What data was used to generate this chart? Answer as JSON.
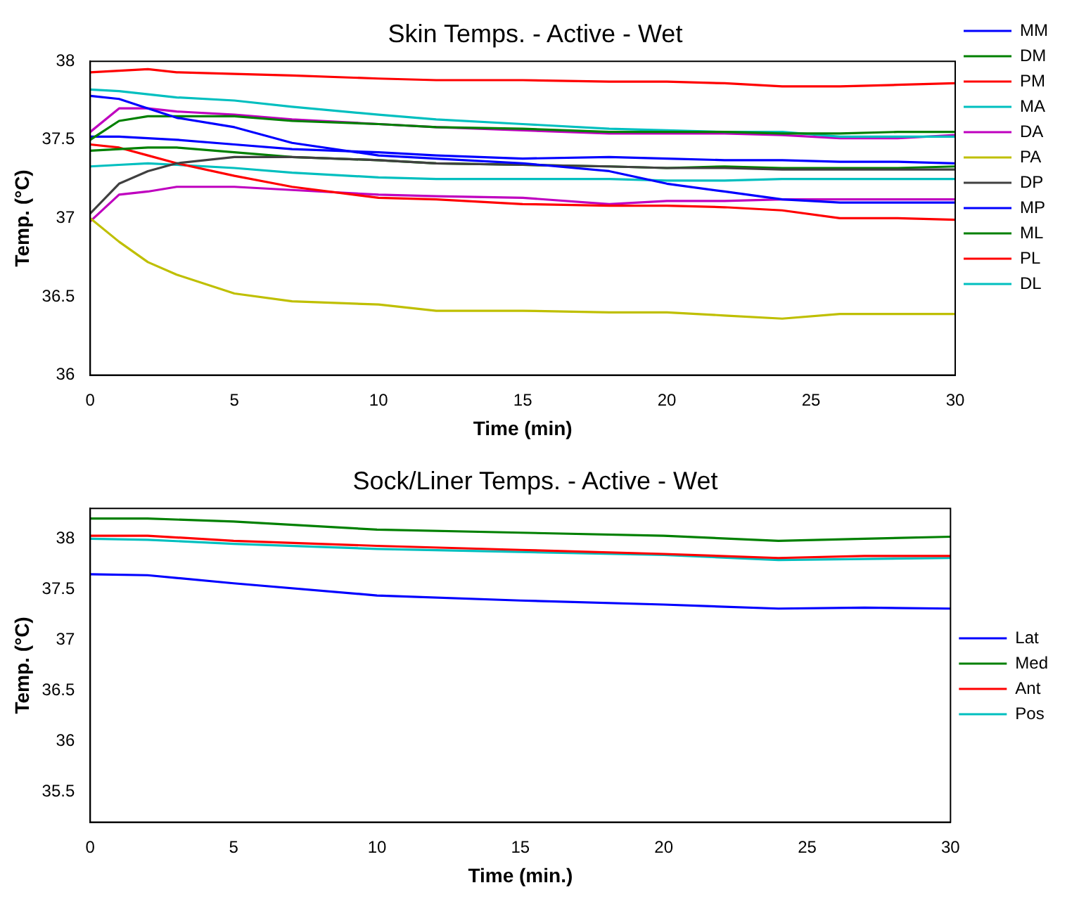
{
  "chart_data": [
    {
      "type": "line",
      "title": "Skin Temps. - Active - Wet",
      "xlabel": "Time (min)",
      "ylabel": "Temp. (°C)",
      "x": [
        0,
        1,
        2,
        3,
        5,
        7,
        10,
        12,
        15,
        18,
        20,
        22,
        24,
        26,
        28,
        30
      ],
      "series": [
        {
          "name": "MM",
          "color": "#0000ff",
          "values": [
            37.78,
            37.76,
            37.7,
            37.64,
            37.58,
            37.48,
            37.4,
            37.38,
            37.35,
            37.3,
            37.22,
            37.17,
            37.12,
            37.1,
            37.1,
            37.1
          ]
        },
        {
          "name": "DM",
          "color": "#008000",
          "values": [
            37.5,
            37.62,
            37.65,
            37.65,
            37.65,
            37.62,
            37.6,
            37.58,
            37.57,
            37.55,
            37.55,
            37.55,
            37.54,
            37.54,
            37.55,
            37.55
          ]
        },
        {
          "name": "PM",
          "color": "#ff0000",
          "values": [
            37.93,
            37.94,
            37.95,
            37.93,
            37.92,
            37.91,
            37.89,
            37.88,
            37.88,
            37.87,
            37.87,
            37.86,
            37.84,
            37.84,
            37.85,
            37.86
          ]
        },
        {
          "name": "MA",
          "color": "#00bfbf",
          "values": [
            37.82,
            37.81,
            37.79,
            37.77,
            37.75,
            37.71,
            37.66,
            37.63,
            37.6,
            37.57,
            37.56,
            37.55,
            37.55,
            37.52,
            37.52,
            37.52
          ]
        },
        {
          "name": "DA",
          "color": "#bf00bf",
          "values": [
            37.55,
            37.7,
            37.7,
            37.68,
            37.66,
            37.63,
            37.6,
            37.58,
            37.56,
            37.54,
            37.54,
            37.54,
            37.53,
            37.51,
            37.51,
            37.53
          ]
        },
        {
          "name": "PA",
          "color": "#bfbf00",
          "values": [
            37.0,
            36.85,
            36.72,
            36.64,
            36.52,
            36.47,
            36.45,
            36.41,
            36.41,
            36.4,
            36.4,
            36.38,
            36.36,
            36.39,
            36.39,
            36.39
          ]
        },
        {
          "name": "DP",
          "color": "#404040",
          "values": [
            37.03,
            37.22,
            37.3,
            37.35,
            37.39,
            37.39,
            37.37,
            37.35,
            37.34,
            37.33,
            37.32,
            37.32,
            37.31,
            37.31,
            37.31,
            37.31
          ]
        },
        {
          "name": "MP",
          "color": "#0000ff",
          "values": [
            37.52,
            37.52,
            37.51,
            37.5,
            37.47,
            37.44,
            37.42,
            37.4,
            37.38,
            37.39,
            37.38,
            37.37,
            37.37,
            37.36,
            37.36,
            37.35
          ]
        },
        {
          "name": "ML",
          "color": "#008000",
          "values": [
            37.43,
            37.44,
            37.45,
            37.45,
            37.42,
            37.39,
            37.37,
            37.35,
            37.34,
            37.33,
            37.32,
            37.33,
            37.32,
            37.32,
            37.32,
            37.33
          ]
        },
        {
          "name": "PL",
          "color": "#ff0000",
          "values": [
            37.47,
            37.45,
            37.4,
            37.35,
            37.27,
            37.2,
            37.13,
            37.12,
            37.09,
            37.08,
            37.08,
            37.07,
            37.05,
            37.0,
            37.0,
            36.99
          ]
        },
        {
          "name": "DL",
          "color": "#00bfbf",
          "values": [
            37.33,
            37.34,
            37.35,
            37.34,
            37.32,
            37.29,
            37.26,
            37.25,
            37.25,
            37.25,
            37.24,
            37.24,
            37.25,
            37.25,
            37.25,
            37.25
          ]
        },
        {
          "color": "#bf00bf",
          "values": [
            36.98,
            37.15,
            37.17,
            37.2,
            37.2,
            37.18,
            37.15,
            37.14,
            37.13,
            37.09,
            37.11,
            37.11,
            37.12,
            37.12,
            37.12,
            37.12
          ]
        }
      ],
      "xlim": [
        0,
        30
      ],
      "xticks": [
        0,
        5,
        10,
        15,
        20,
        25,
        30
      ],
      "ylim": [
        36,
        38
      ],
      "yticks": [
        36,
        36.5,
        37,
        37.5,
        38
      ],
      "grid": false,
      "legend": "top right"
    },
    {
      "type": "line",
      "title": "Sock/Liner Temps. - Active - Wet",
      "xlabel": "Time (min.)",
      "ylabel": "Temp. (°C)",
      "x": [
        0,
        2,
        5,
        10,
        15,
        20,
        24,
        27,
        30
      ],
      "series": [
        {
          "name": "Lat",
          "color": "#0000ff",
          "values": [
            37.65,
            37.64,
            37.56,
            37.44,
            37.39,
            37.35,
            37.31,
            37.32,
            37.31
          ]
        },
        {
          "name": "Med",
          "color": "#008000",
          "values": [
            38.2,
            38.2,
            38.17,
            38.09,
            38.06,
            38.03,
            37.98,
            38.0,
            38.02
          ]
        },
        {
          "name": "Ant",
          "color": "#ff0000",
          "values": [
            38.03,
            38.03,
            37.98,
            37.93,
            37.89,
            37.85,
            37.81,
            37.83,
            37.83
          ]
        },
        {
          "name": "Pos",
          "color": "#00bfbf",
          "values": [
            38.0,
            37.99,
            37.95,
            37.9,
            37.87,
            37.84,
            37.79,
            37.8,
            37.81
          ]
        }
      ],
      "xlim": [
        0,
        30
      ],
      "xticks": [
        0,
        5,
        10,
        15,
        20,
        25,
        30
      ],
      "ylim": [
        35.2,
        38.3
      ],
      "yticks": [
        35.5,
        36,
        36.5,
        37,
        37.5,
        38
      ],
      "grid": false,
      "legend": "right"
    }
  ]
}
